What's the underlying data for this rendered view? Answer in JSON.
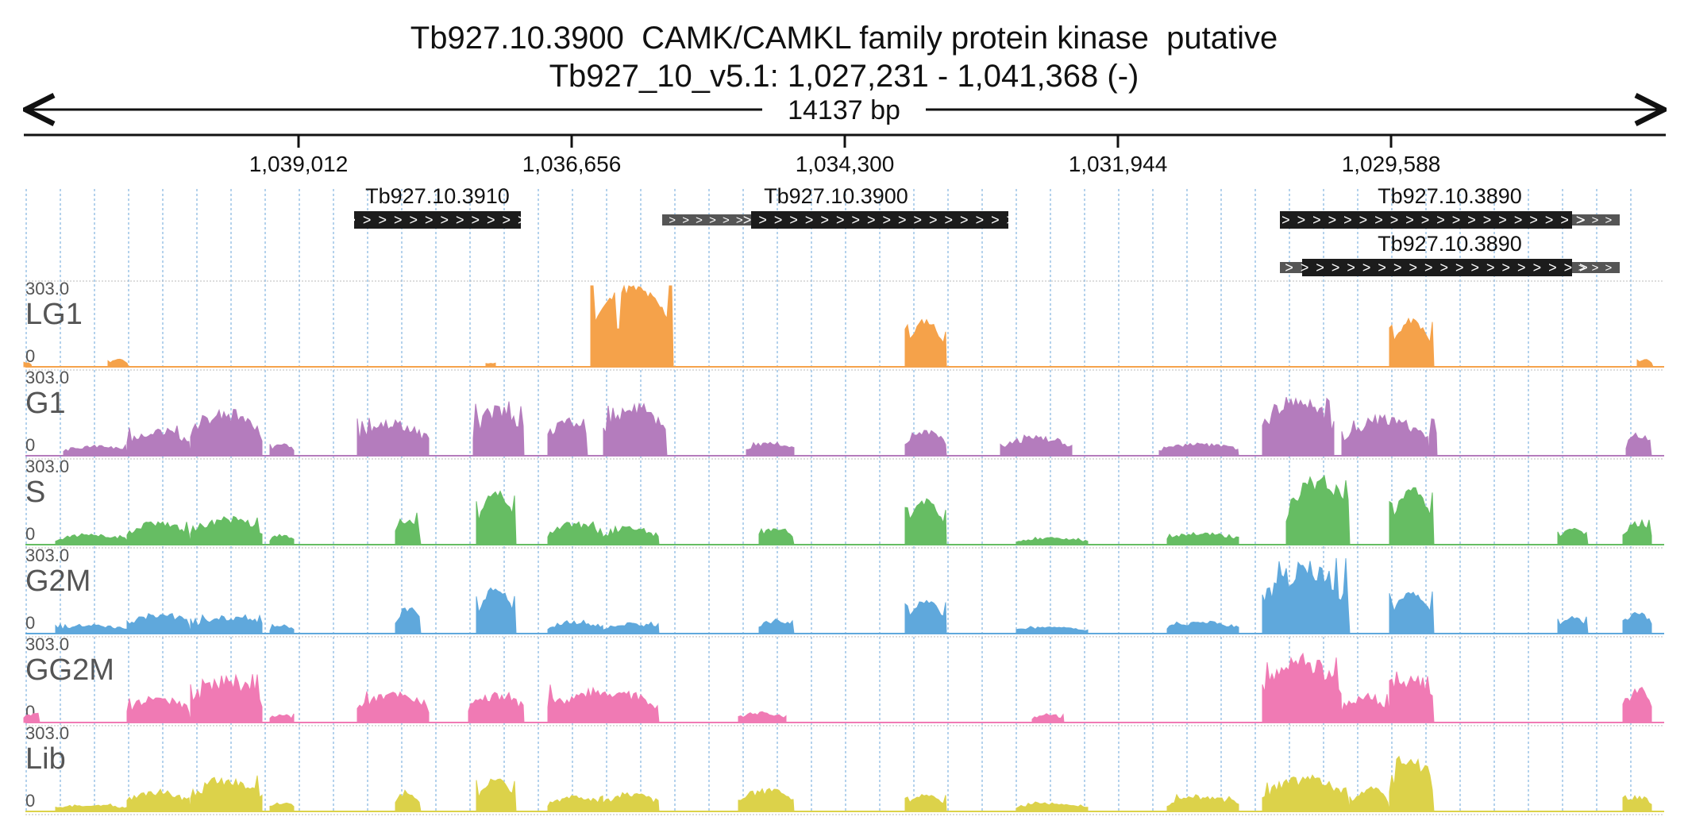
{
  "title": {
    "gene_line": "Tb927.10.3900  CAMK/CAMKL family protein kinase  putative",
    "locus_line": "Tb927_10_v5.1: 1,027,231 - 1,041,368 (-)"
  },
  "ruler": {
    "span_label": "14137 bp",
    "ticks": [
      "1,039,012",
      "1,036,656",
      "1,034,300",
      "1,031,944",
      "1,029,588"
    ]
  },
  "genes": [
    {
      "name": "Tb927.10.3910"
    },
    {
      "name": "Tb927.10.3900"
    },
    {
      "name": "Tb927.10.3890"
    },
    {
      "name": "Tb927.10.3890"
    }
  ],
  "tracks": [
    {
      "name": "LG1",
      "color": "#f5a24a",
      "scale_max": "303.0",
      "scale_min": "0"
    },
    {
      "name": "G1",
      "color": "#b47cbd",
      "scale_max": "303.0",
      "scale_min": "0"
    },
    {
      "name": "S",
      "color": "#66bd63",
      "scale_max": "303.0",
      "scale_min": "0"
    },
    {
      "name": "G2M",
      "color": "#5fa8dc",
      "scale_max": "303.0",
      "scale_min": "0"
    },
    {
      "name": "GG2M",
      "color": "#f07ab4",
      "scale_max": "303.0",
      "scale_min": "0"
    },
    {
      "name": "Lib",
      "color": "#dcd24a",
      "scale_max": "303.0",
      "scale_min": "0"
    }
  ]
}
